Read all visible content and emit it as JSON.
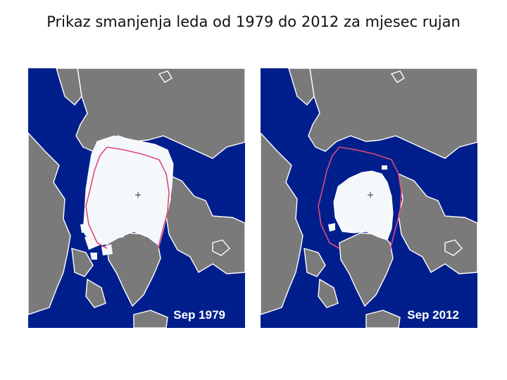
{
  "slide": {
    "title": "Prikaz smanjenja leda od 1979 do 2012 za mjesec rujan"
  },
  "maps": [
    {
      "caption": "Sep 1979"
    },
    {
      "caption": "Sep 2012"
    }
  ],
  "colors": {
    "ocean": "#001f8c",
    "land": "#7a7a7a",
    "ice": "#f5f8fb",
    "median_line": "#e0467a"
  }
}
